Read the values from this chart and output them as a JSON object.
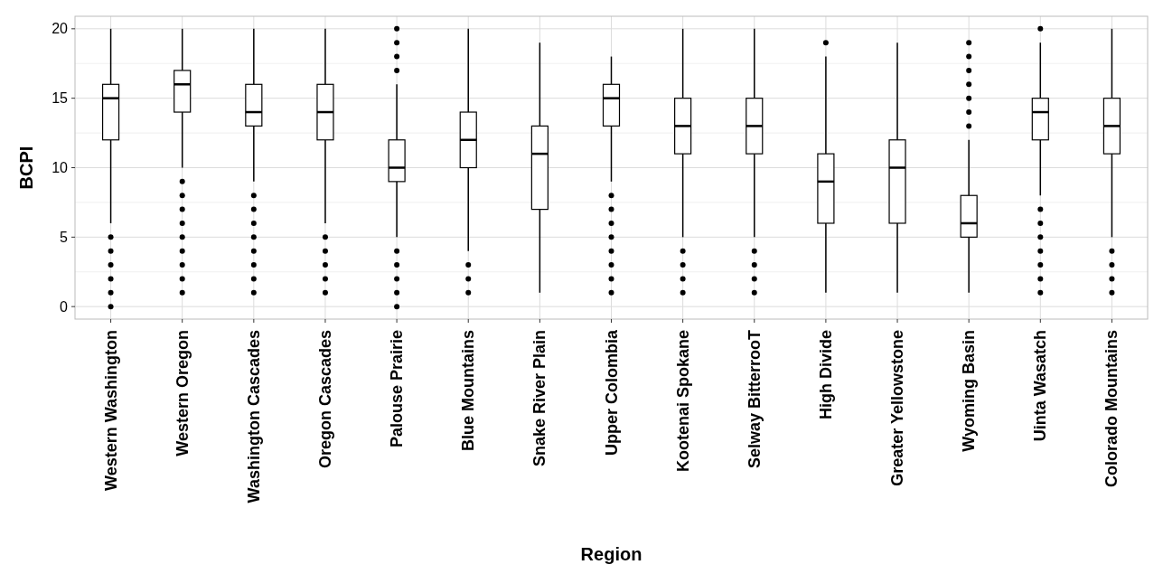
{
  "chart_data": {
    "type": "box",
    "xlabel": "Region",
    "ylabel": "BCPI",
    "categories": [
      "Western Washington",
      "Western Oregon",
      "Washington Cascades",
      "Oregon Cascades",
      "Palouse Prairie",
      "Blue Mountains",
      "Snake River Plain",
      "Upper Colombia",
      "Kootenai Spokane",
      "Selway BitterrooT",
      "High Divide",
      "Greater Yellowstone",
      "Wyoming Basin",
      "Uinta Wasatch",
      "Colorado Mountains"
    ],
    "boxes": [
      {
        "low": 6,
        "q1": 12,
        "median": 15,
        "q3": 16,
        "high": 20,
        "outliers": [
          5,
          4,
          3,
          2,
          1,
          0
        ]
      },
      {
        "low": 10,
        "q1": 14,
        "median": 16,
        "q3": 17,
        "high": 20,
        "outliers": [
          9,
          8,
          7,
          6,
          5,
          4,
          3,
          2,
          1
        ]
      },
      {
        "low": 9,
        "q1": 13,
        "median": 14,
        "q3": 16,
        "high": 20,
        "outliers": [
          8,
          7,
          6,
          5,
          4,
          3,
          2,
          1
        ]
      },
      {
        "low": 6,
        "q1": 12,
        "median": 14,
        "q3": 16,
        "high": 20,
        "outliers": [
          5,
          4,
          3,
          2,
          1
        ]
      },
      {
        "low": 5,
        "q1": 9,
        "median": 10,
        "q3": 12,
        "high": 16,
        "outliers": [
          4,
          3,
          2,
          1,
          0,
          17,
          18,
          19,
          20
        ]
      },
      {
        "low": 4,
        "q1": 10,
        "median": 12,
        "q3": 14,
        "high": 20,
        "outliers": [
          3,
          2,
          1
        ]
      },
      {
        "low": 1,
        "q1": 7,
        "median": 11,
        "q3": 13,
        "high": 19
      },
      {
        "low": 9,
        "q1": 13,
        "median": 15,
        "q3": 16,
        "high": 18,
        "outliers": [
          8,
          7,
          6,
          5,
          4,
          3,
          2,
          1
        ]
      },
      {
        "low": 5,
        "q1": 11,
        "median": 13,
        "q3": 15,
        "high": 20,
        "outliers": [
          4,
          3,
          2,
          1
        ]
      },
      {
        "low": 5,
        "q1": 11,
        "median": 13,
        "q3": 15,
        "high": 20,
        "outliers": [
          4,
          3,
          2,
          1
        ]
      },
      {
        "low": 1,
        "q1": 6,
        "median": 9,
        "q3": 11,
        "high": 18,
        "outliers": [
          19
        ]
      },
      {
        "low": 1,
        "q1": 6,
        "median": 10,
        "q3": 12,
        "high": 19
      },
      {
        "low": 1,
        "q1": 5,
        "median": 6,
        "q3": 8,
        "high": 12,
        "outliers": [
          13,
          14,
          15,
          16,
          17,
          18,
          19
        ]
      },
      {
        "low": 8,
        "q1": 12,
        "median": 14,
        "q3": 15,
        "high": 19,
        "outliers": [
          20,
          7,
          6,
          5,
          4,
          3,
          2,
          1
        ]
      },
      {
        "low": 5,
        "q1": 11,
        "median": 13,
        "q3": 15,
        "high": 20,
        "outliers": [
          4,
          3,
          2,
          1
        ]
      }
    ],
    "ylim": [
      -0.9,
      20.9
    ],
    "yticks": [
      0,
      5,
      10,
      15,
      20
    ],
    "grid": true
  }
}
